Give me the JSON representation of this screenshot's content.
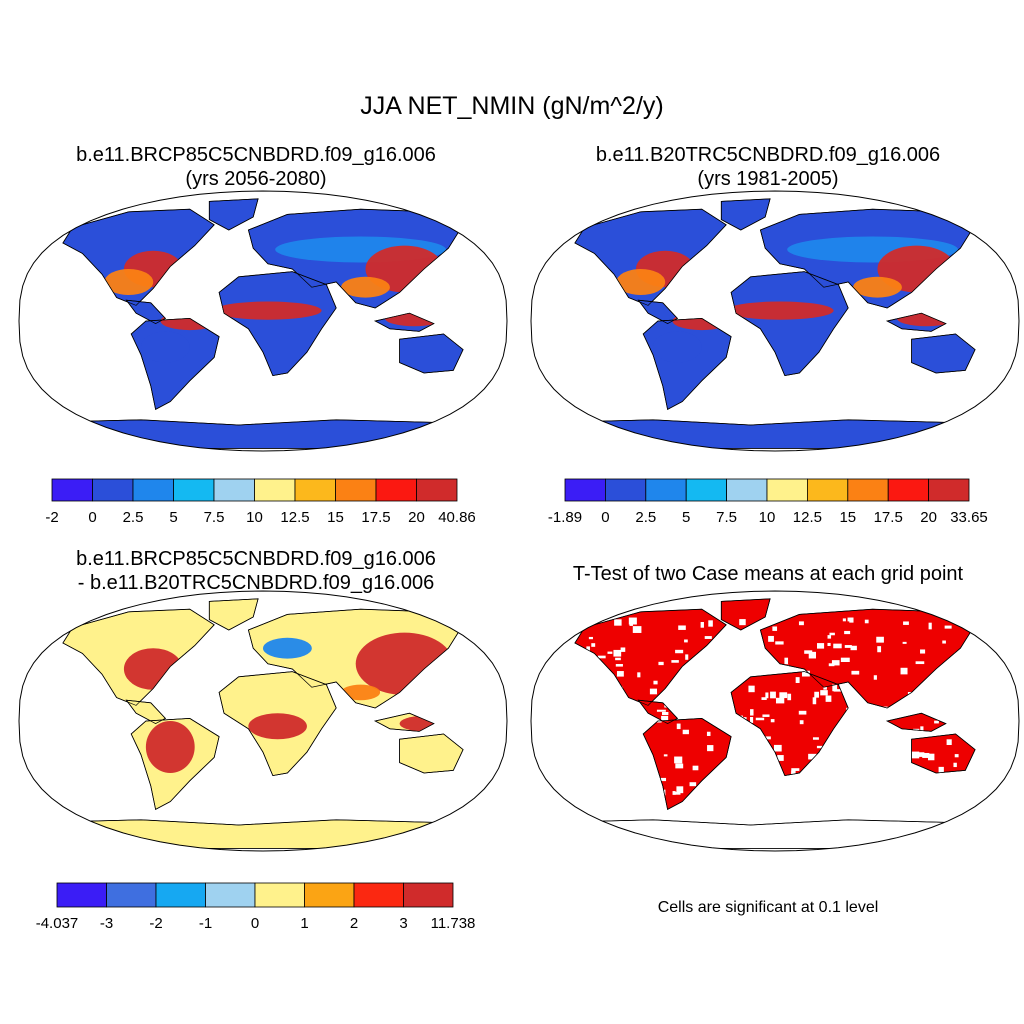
{
  "main_title": "JJA NET_NMIN (gN/m^2/y)",
  "panels": [
    {
      "id": "future",
      "title_line1": "b.e11.BRCP85C5CNBDRD.f09_g16.006",
      "title_line2": "(yrs 2056-2080)",
      "map_style": "field",
      "colorbar": {
        "colors": [
          "#3b1df6",
          "#2b4fd9",
          "#1f86ec",
          "#14b9f2",
          "#9fd2f0",
          "#fff28c",
          "#fcb81c",
          "#fb8114",
          "#fb1811",
          "#d02b2b"
        ],
        "labels": [
          "-2",
          "0",
          "2.5",
          "5",
          "7.5",
          "10",
          "12.5",
          "15",
          "17.5",
          "20",
          "40.86"
        ]
      }
    },
    {
      "id": "historical",
      "title_line1": "b.e11.B20TRC5CNBDRD.f09_g16.006",
      "title_line2": "(yrs 1981-2005)",
      "map_style": "field",
      "colorbar": {
        "colors": [
          "#3b1df6",
          "#2b4fd9",
          "#1f86ec",
          "#14b9f2",
          "#9fd2f0",
          "#fff28c",
          "#fcb81c",
          "#fb8114",
          "#fb1811",
          "#d02b2b"
        ],
        "labels": [
          "-1.89",
          "0",
          "2.5",
          "5",
          "7.5",
          "10",
          "12.5",
          "15",
          "17.5",
          "20",
          "33.65"
        ]
      }
    },
    {
      "id": "difference",
      "title_line1": "b.e11.BRCP85C5CNBDRD.f09_g16.006",
      "title_line2": "- b.e11.B20TRC5CNBDRD.f09_g16.006",
      "map_style": "diff",
      "colorbar": {
        "colors": [
          "#3b1df6",
          "#3f6fe0",
          "#16a8f2",
          "#9fd2f0",
          "#fff28c",
          "#fba414",
          "#fb2811",
          "#d02b2b"
        ],
        "labels": [
          "-4.037",
          "-3",
          "-2",
          "-1",
          "0",
          "1",
          "2",
          "3",
          "11.738"
        ]
      }
    },
    {
      "id": "ttest",
      "title_line1": "T-Test of two Case means at each grid point",
      "title_line2": "",
      "map_style": "ttest",
      "note": "Cells are significant at 0.1 level"
    }
  ],
  "colors": {
    "land_blue": "#2b4fd9",
    "land_lightblue": "#1f86ec",
    "land_red": "#d02b2b",
    "land_orange": "#fb8114",
    "land_yellow": "#fff28c",
    "sig_red": "#ee0000",
    "outline": "#000000"
  }
}
